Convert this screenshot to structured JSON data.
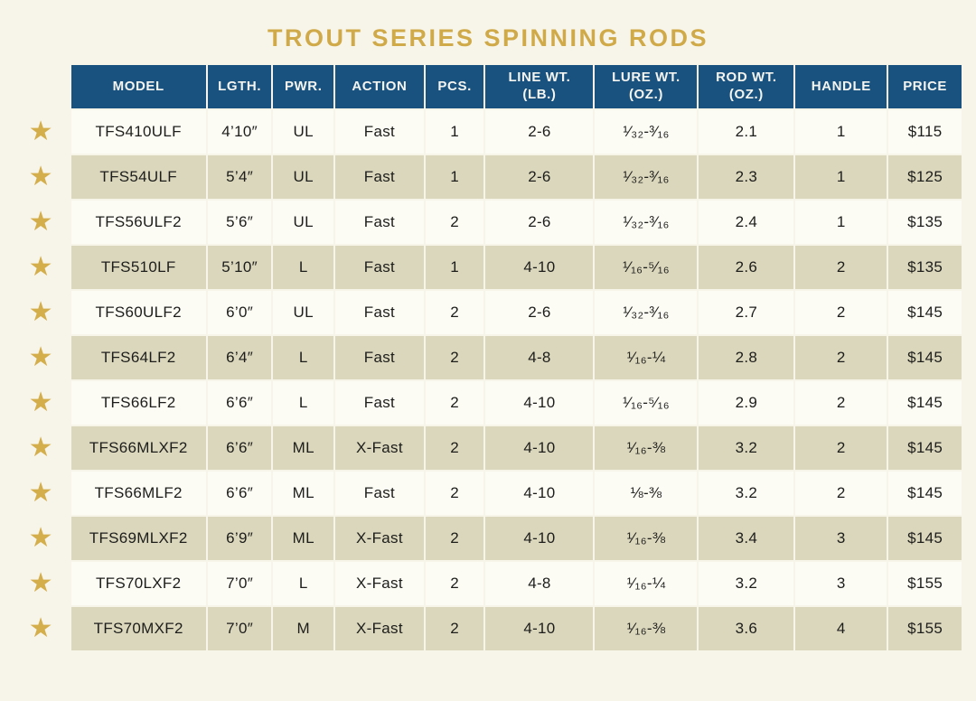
{
  "page": {
    "title": "TROUT SERIES SPINNING RODS"
  },
  "colors": {
    "page_bg": "#f7f4ea",
    "header_bg": "#19527e",
    "title_gold": "#d0aa48",
    "star_gold": "#d3ae4a",
    "row_alt": "#dbd7bc",
    "row_base": "#fcfbf4",
    "text": "#1d1d1b"
  },
  "icons": {
    "favorite_star": "★"
  },
  "table": {
    "columns": [
      {
        "key": "model",
        "label": "MODEL"
      },
      {
        "key": "lgth",
        "label": "LGTH."
      },
      {
        "key": "pwr",
        "label": "PWR."
      },
      {
        "key": "action",
        "label": "ACTION"
      },
      {
        "key": "pcs",
        "label": "PCS."
      },
      {
        "key": "line_wt",
        "label": "LINE WT.\n(LB.)"
      },
      {
        "key": "lure_wt",
        "label": "LURE WT.\n(OZ.)"
      },
      {
        "key": "rod_wt",
        "label": "ROD WT.\n(OZ.)"
      },
      {
        "key": "handle",
        "label": "HANDLE"
      },
      {
        "key": "price",
        "label": "PRICE"
      }
    ],
    "rows": [
      {
        "model": "TFS410ULF",
        "lgth": "4’10″",
        "pwr": "UL",
        "action": "Fast",
        "pcs": "1",
        "line_wt": "2-6",
        "lure_wt": "¹⁄₃₂-³⁄₁₆",
        "rod_wt": "2.1",
        "handle": "1",
        "price": "$115"
      },
      {
        "model": "TFS54ULF",
        "lgth": "5’4″",
        "pwr": "UL",
        "action": "Fast",
        "pcs": "1",
        "line_wt": "2-6",
        "lure_wt": "¹⁄₃₂-³⁄₁₆",
        "rod_wt": "2.3",
        "handle": "1",
        "price": "$125"
      },
      {
        "model": "TFS56ULF2",
        "lgth": "5’6″",
        "pwr": "UL",
        "action": "Fast",
        "pcs": "2",
        "line_wt": "2-6",
        "lure_wt": "¹⁄₃₂-³⁄₁₆",
        "rod_wt": "2.4",
        "handle": "1",
        "price": "$135"
      },
      {
        "model": "TFS510LF",
        "lgth": "5’10″",
        "pwr": "L",
        "action": "Fast",
        "pcs": "1",
        "line_wt": "4-10",
        "lure_wt": "¹⁄₁₆-⁵⁄₁₆",
        "rod_wt": "2.6",
        "handle": "2",
        "price": "$135"
      },
      {
        "model": "TFS60ULF2",
        "lgth": "6’0″",
        "pwr": "UL",
        "action": "Fast",
        "pcs": "2",
        "line_wt": "2-6",
        "lure_wt": "¹⁄₃₂-³⁄₁₆",
        "rod_wt": "2.7",
        "handle": "2",
        "price": "$145"
      },
      {
        "model": "TFS64LF2",
        "lgth": "6’4″",
        "pwr": "L",
        "action": "Fast",
        "pcs": "2",
        "line_wt": "4-8",
        "lure_wt": "¹⁄₁₆-¼",
        "rod_wt": "2.8",
        "handle": "2",
        "price": "$145"
      },
      {
        "model": "TFS66LF2",
        "lgth": "6’6″",
        "pwr": "L",
        "action": "Fast",
        "pcs": "2",
        "line_wt": "4-10",
        "lure_wt": "¹⁄₁₆-⁵⁄₁₆",
        "rod_wt": "2.9",
        "handle": "2",
        "price": "$145"
      },
      {
        "model": "TFS66MLXF2",
        "lgth": "6’6″",
        "pwr": "ML",
        "action": "X-Fast",
        "pcs": "2",
        "line_wt": "4-10",
        "lure_wt": "¹⁄₁₆-⅜",
        "rod_wt": "3.2",
        "handle": "2",
        "price": "$145"
      },
      {
        "model": "TFS66MLF2",
        "lgth": "6’6″",
        "pwr": "ML",
        "action": "Fast",
        "pcs": "2",
        "line_wt": "4-10",
        "lure_wt": "⅛-⅜",
        "rod_wt": "3.2",
        "handle": "2",
        "price": "$145"
      },
      {
        "model": "TFS69MLXF2",
        "lgth": "6’9″",
        "pwr": "ML",
        "action": "X-Fast",
        "pcs": "2",
        "line_wt": "4-10",
        "lure_wt": "¹⁄₁₆-⅜",
        "rod_wt": "3.4",
        "handle": "3",
        "price": "$145"
      },
      {
        "model": "TFS70LXF2",
        "lgth": "7’0″",
        "pwr": "L",
        "action": "X-Fast",
        "pcs": "2",
        "line_wt": "4-8",
        "lure_wt": "¹⁄₁₆-¼",
        "rod_wt": "3.2",
        "handle": "3",
        "price": "$155"
      },
      {
        "model": "TFS70MXF2",
        "lgth": "7’0″",
        "pwr": "M",
        "action": "X-Fast",
        "pcs": "2",
        "line_wt": "4-10",
        "lure_wt": "¹⁄₁₆-⅜",
        "rod_wt": "3.6",
        "handle": "4",
        "price": "$155"
      }
    ]
  }
}
